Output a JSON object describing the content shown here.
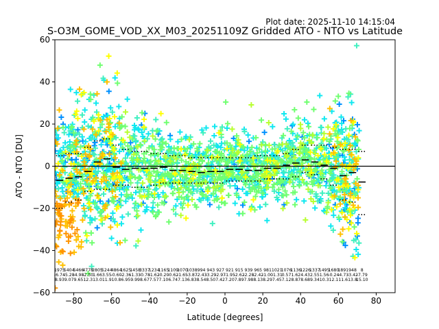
{
  "plot_date": "Plot date: 2025-11-10 14:15:04",
  "chart_data": {
    "type": "scatter",
    "title": "S-O3M_GOME_VOD_XX_M03_20251109Z Gridded ATO - NTO vs Latitude",
    "xlabel": "Latitude [degrees]",
    "ylabel": "ATO - NTO [DU]",
    "xlim": [
      -90,
      90
    ],
    "ylim": [
      -60,
      60
    ],
    "xticks": [
      -80,
      -60,
      -40,
      -20,
      0,
      20,
      40,
      60,
      80
    ],
    "yticks": [
      -60,
      -40,
      -20,
      0,
      20,
      40,
      60
    ],
    "grid": false,
    "legend": "none",
    "marker": "plus",
    "colors": [
      "#0a2cff",
      "#0090ff",
      "#10e8f0",
      "#40f0c0",
      "#70ff70",
      "#b8ff30",
      "#ffff00",
      "#ffc000",
      "#ff9400"
    ],
    "bin_width": 5,
    "bins": [
      {
        "lat": -87.5,
        "median": -6.7,
        "p25": -20,
        "p75": 5
      },
      {
        "lat": -82.5,
        "median": -5.7,
        "p25": -17,
        "p75": 6
      },
      {
        "lat": -77.5,
        "median": -5.0,
        "p25": -16,
        "p75": 6
      },
      {
        "lat": -72.5,
        "median": -2.5,
        "p25": -12,
        "p75": 9
      },
      {
        "lat": -67.5,
        "median": 2.0,
        "p25": -11,
        "p75": 12
      },
      {
        "lat": -62.5,
        "median": 3.5,
        "p25": -11,
        "p75": 13
      },
      {
        "lat": -57.5,
        "median": -0.5,
        "p25": -9,
        "p75": 10
      },
      {
        "lat": -52.5,
        "median": -1.5,
        "p25": -9,
        "p75": 8
      },
      {
        "lat": -47.5,
        "median": -1.0,
        "p25": -10,
        "p75": 7
      },
      {
        "lat": -42.5,
        "median": -1.0,
        "p25": -10,
        "p75": 7
      },
      {
        "lat": -37.5,
        "median": -1.0,
        "p25": -9,
        "p75": 6
      },
      {
        "lat": -32.5,
        "median": -0.5,
        "p25": -8,
        "p75": 6
      },
      {
        "lat": -27.5,
        "median": -2.0,
        "p25": -8,
        "p75": 5
      },
      {
        "lat": -22.5,
        "median": -2.0,
        "p25": -8,
        "p75": 5
      },
      {
        "lat": -17.5,
        "median": -2.5,
        "p25": -8,
        "p75": 4
      },
      {
        "lat": -12.5,
        "median": -3.0,
        "p25": -8,
        "p75": 4
      },
      {
        "lat": -7.5,
        "median": -2.5,
        "p25": -8,
        "p75": 4
      },
      {
        "lat": -2.5,
        "median": -2.5,
        "p25": -8,
        "p75": 4
      },
      {
        "lat": 2.5,
        "median": -1.5,
        "p25": -7,
        "p75": 4
      },
      {
        "lat": 7.5,
        "median": -1.5,
        "p25": -7,
        "p75": 4
      },
      {
        "lat": 12.5,
        "median": -2.0,
        "p25": -7,
        "p75": 4
      },
      {
        "lat": 17.5,
        "median": -2.0,
        "p25": -7,
        "p75": 5
      },
      {
        "lat": 22.5,
        "median": -1.0,
        "p25": -6,
        "p75": 5
      },
      {
        "lat": 27.5,
        "median": -1.0,
        "p25": -6,
        "p75": 5
      },
      {
        "lat": 32.5,
        "median": 0.5,
        "p25": -6,
        "p75": 6
      },
      {
        "lat": 37.5,
        "median": 1.5,
        "p25": -5,
        "p75": 8
      },
      {
        "lat": 42.5,
        "median": 3.0,
        "p25": -3,
        "p75": 10
      },
      {
        "lat": 47.5,
        "median": 2.0,
        "p25": -4,
        "p75": 10
      },
      {
        "lat": 52.5,
        "median": 0.5,
        "p25": -6,
        "p75": 10
      },
      {
        "lat": 57.5,
        "median": -1.0,
        "p25": -9,
        "p75": 9
      },
      {
        "lat": 62.5,
        "median": -4.5,
        "p25": -16,
        "p75": 8
      },
      {
        "lat": 67.5,
        "median": -3.0,
        "p25": -17,
        "p75": 8
      },
      {
        "lat": 72.5,
        "median": -7.5,
        "p25": -23,
        "p75": 7
      }
    ],
    "bin_stats": [
      {
        "lat": -87.5,
        "n": "1975",
        "mean": "-6.74",
        "sd": "8.93"
      },
      {
        "lat": -82.5,
        "n": "5404",
        "mean": "-5.28",
        "sd": "9.07"
      },
      {
        "lat": -77.5,
        "n": "5466",
        "mean": "-4.98",
        "sd": "9.65"
      },
      {
        "lat": -72.5,
        "n": "4778",
        "mean": "-2.50",
        "sd": "12.3"
      },
      {
        "lat": -67.5,
        "n": "2805",
        "mean": "1.66",
        "sd": "13.0"
      },
      {
        "lat": -62.5,
        "n": "5244",
        "mean": "3.55",
        "sd": "11.9"
      },
      {
        "lat": -57.5,
        "n": "4864",
        "mean": "-0.60",
        "sd": "10.8"
      },
      {
        "lat": -52.5,
        "n": "1625",
        "mean": "-2.36",
        "sd": "6.95"
      },
      {
        "lat": -47.5,
        "n": "1458",
        "mean": "-1.33",
        "sd": "9.99"
      },
      {
        "lat": -42.5,
        "n": "3337",
        "mean": "-0.78",
        "sd": "8.67"
      },
      {
        "lat": -37.5,
        "n": "1234",
        "mean": "-1.62",
        "sd": "7.57"
      },
      {
        "lat": -32.5,
        "n": "1165",
        "mean": "-0.20",
        "sd": "7.10"
      },
      {
        "lat": -27.5,
        "n": "1109",
        "mean": "-0.62",
        "sd": "6.74"
      },
      {
        "lat": -22.5,
        "n": "1070",
        "mean": "-1.65",
        "sd": "7.13"
      },
      {
        "lat": -17.5,
        "n": "1038",
        "mean": "-3.87",
        "sd": "6.83"
      },
      {
        "lat": -12.5,
        "n": "994",
        "mean": "-2.43",
        "sd": "8.54"
      },
      {
        "lat": -7.5,
        "n": "943",
        "mean": "-3.29",
        "sd": "8.50"
      },
      {
        "lat": -2.5,
        "n": "927",
        "mean": "-2.97",
        "sd": "7.42"
      },
      {
        "lat": 2.5,
        "n": "921",
        "mean": "-1.95",
        "sd": "7.20"
      },
      {
        "lat": 7.5,
        "n": "915",
        "mean": "-2.62",
        "sd": "7.89"
      },
      {
        "lat": 12.5,
        "n": "939",
        "mean": "-2.28",
        "sd": "7.98"
      },
      {
        "lat": 17.5,
        "n": "965",
        "mean": "-2.42",
        "sd": "8.13"
      },
      {
        "lat": 22.5,
        "n": "981",
        "mean": "-1.00",
        "sd": "8.29"
      },
      {
        "lat": 27.5,
        "n": "1021",
        "mean": "-1.31",
        "sd": "7.45"
      },
      {
        "lat": 32.5,
        "n": "1076",
        "mean": "0.57",
        "sd": "7.12"
      },
      {
        "lat": 37.5,
        "n": "1136",
        "mean": "1.62",
        "sd": "8.87"
      },
      {
        "lat": 42.5,
        "n": "1226",
        "mean": "4.43",
        "sd": "8.68"
      },
      {
        "lat": 47.5,
        "n": "1337",
        "mean": "2.55",
        "sd": "9.34"
      },
      {
        "lat": 52.5,
        "n": "1495",
        "mean": "1.56",
        "sd": "10.3"
      },
      {
        "lat": 57.5,
        "n": "1680",
        "mean": "-0.24",
        "sd": "12.1"
      },
      {
        "lat": 62.5,
        "n": "1891",
        "mean": "-4.73",
        "sd": "11.6"
      },
      {
        "lat": 67.5,
        "n": "948",
        "mean": "-3.42",
        "sd": "13.8"
      },
      {
        "lat": 72.5,
        "n": "8",
        "mean": "-7.79",
        "sd": "15.10"
      }
    ]
  }
}
